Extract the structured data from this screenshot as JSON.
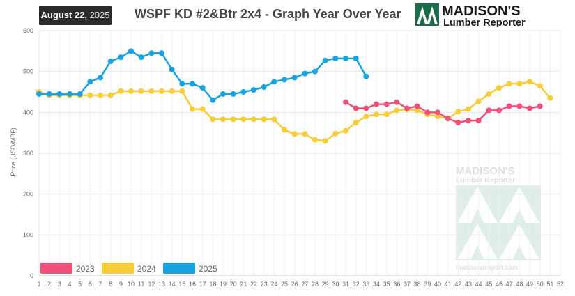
{
  "header": {
    "date_month_day": "August 22,",
    "date_year": "2025",
    "title": "WSPF KD #2&Btr 2x4 - Graph Year Over Year"
  },
  "logo": {
    "line1": "MADISON'S",
    "line2": "Lumber Reporter",
    "watermark_url": "madisonsreport.com",
    "colors": {
      "green": "#1a6b4a",
      "dark": "#1b1b1b"
    }
  },
  "chart_data": {
    "type": "line",
    "ylabel": "Price (USD/MBF)",
    "xlabel": "",
    "ylim": [
      0,
      600
    ],
    "yticks": [
      0,
      100,
      200,
      300,
      400,
      500,
      600
    ],
    "x_categories": [
      "1",
      "2",
      "3",
      "4",
      "5",
      "6",
      "7",
      "8",
      "9",
      "10",
      "11",
      "12",
      "13",
      "14",
      "15",
      "16",
      "17",
      "18",
      "19",
      "20",
      "21",
      "22",
      "23",
      "24",
      "25",
      "26",
      "27",
      "28",
      "29",
      "30",
      "31",
      "32",
      "33",
      "34",
      "35",
      "36",
      "37",
      "38",
      "39",
      "40",
      "41",
      "42",
      "43",
      "44",
      "45",
      "46",
      "47",
      "48",
      "49",
      "50",
      "51",
      "52"
    ],
    "grid": true,
    "legend_position": "bottom-left",
    "series": [
      {
        "name": "2023",
        "color": "#f0507a",
        "x": [
          31,
          32,
          33,
          34,
          35,
          36,
          37,
          38,
          39,
          40,
          41,
          42,
          43,
          44,
          45,
          46,
          47,
          48,
          49,
          50
        ],
        "values": [
          425,
          410,
          410,
          420,
          420,
          425,
          410,
          415,
          400,
          400,
          385,
          375,
          380,
          380,
          405,
          405,
          415,
          415,
          410,
          415
        ]
      },
      {
        "name": "2024",
        "color": "#f9cc3a",
        "x": [
          1,
          2,
          3,
          4,
          5,
          6,
          7,
          8,
          9,
          10,
          11,
          12,
          13,
          14,
          15,
          16,
          17,
          18,
          19,
          20,
          21,
          22,
          23,
          24,
          25,
          26,
          27,
          28,
          29,
          30,
          31,
          32,
          33,
          34,
          35,
          36,
          37,
          38,
          39,
          40,
          41,
          42,
          43,
          44,
          45,
          46,
          47,
          48,
          49,
          50,
          51
        ],
        "values": [
          450,
          442,
          442,
          442,
          442,
          442,
          442,
          442,
          452,
          452,
          452,
          452,
          452,
          452,
          452,
          408,
          408,
          383,
          383,
          383,
          383,
          383,
          383,
          383,
          357,
          347,
          347,
          333,
          330,
          348,
          355,
          375,
          390,
          395,
          395,
          405,
          407,
          405,
          395,
          390,
          385,
          402,
          408,
          427,
          445,
          460,
          470,
          470,
          475,
          465,
          435
        ]
      },
      {
        "name": "2025",
        "color": "#18a2e0",
        "x": [
          1,
          2,
          3,
          4,
          5,
          6,
          7,
          8,
          9,
          10,
          11,
          12,
          13,
          14,
          15,
          16,
          17,
          18,
          19,
          20,
          21,
          22,
          23,
          24,
          25,
          26,
          27,
          28,
          29,
          30,
          31,
          32,
          33
        ],
        "values": [
          445,
          445,
          445,
          445,
          445,
          475,
          485,
          525,
          535,
          550,
          535,
          545,
          545,
          505,
          470,
          470,
          460,
          430,
          445,
          445,
          450,
          455,
          462,
          475,
          480,
          485,
          495,
          500,
          527,
          532,
          532,
          532,
          488
        ]
      }
    ]
  }
}
